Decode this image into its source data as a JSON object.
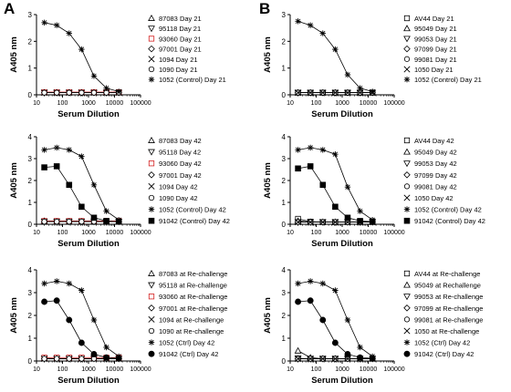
{
  "panel_letters": [
    "A",
    "B"
  ],
  "chart_data": [
    {
      "type": "line",
      "panel": "A",
      "xlabel": "Serum Dilution",
      "ylabel": "A405 nm",
      "xscale": "log",
      "xlim": [
        10,
        100000
      ],
      "ylim": [
        0,
        3
      ],
      "xticks": [
        "10",
        "100",
        "1000",
        "10000",
        "100000"
      ],
      "yticks": [
        "0",
        "1",
        "2",
        "3"
      ],
      "x": [
        20,
        60,
        180,
        540,
        1620,
        4860,
        14580
      ],
      "legend_position": "right",
      "series": [
        {
          "name": "87083 Day 21",
          "marker": "tri-up",
          "color": "#000000",
          "values": [
            0.08,
            0.08,
            0.08,
            0.08,
            0.08,
            0.08,
            0.08
          ]
        },
        {
          "name": "95118 Day 21",
          "marker": "tri-down",
          "color": "#000000",
          "values": [
            0.08,
            0.08,
            0.08,
            0.08,
            0.08,
            0.08,
            0.08
          ]
        },
        {
          "name": "93060 Day 21",
          "marker": "square",
          "color": "#d42020",
          "values": [
            0.1,
            0.1,
            0.1,
            0.1,
            0.1,
            0.1,
            0.1
          ]
        },
        {
          "name": "97001 Day 21",
          "marker": "diamond",
          "color": "#000000",
          "values": [
            0.08,
            0.08,
            0.08,
            0.08,
            0.08,
            0.08,
            0.08
          ]
        },
        {
          "name": "1094 Day 21",
          "marker": "x",
          "color": "#000000",
          "values": [
            0.08,
            0.08,
            0.08,
            0.08,
            0.08,
            0.08,
            0.08
          ]
        },
        {
          "name": "1090 Day 21",
          "marker": "circle",
          "color": "#000000",
          "values": [
            0.08,
            0.08,
            0.08,
            0.08,
            0.08,
            0.08,
            0.08
          ]
        },
        {
          "name": "1052 (Control) Day 21",
          "marker": "star",
          "color": "#000000",
          "values": [
            2.7,
            2.6,
            2.3,
            1.7,
            0.7,
            0.25,
            0.12
          ]
        }
      ]
    },
    {
      "type": "line",
      "panel": "B",
      "xlabel": "Serum Dilution",
      "ylabel": "A405 nm",
      "xscale": "log",
      "xlim": [
        10,
        100000
      ],
      "ylim": [
        0,
        3
      ],
      "xticks": [
        "10",
        "100",
        "1000",
        "10000",
        "100000"
      ],
      "yticks": [
        "0",
        "1",
        "2",
        "3"
      ],
      "x": [
        20,
        60,
        180,
        540,
        1620,
        4860,
        14580
      ],
      "legend_position": "right",
      "series": [
        {
          "name": "AV44 Day 21",
          "marker": "square",
          "color": "#000000",
          "values": [
            0.08,
            0.08,
            0.08,
            0.08,
            0.08,
            0.08,
            0.08
          ]
        },
        {
          "name": "95049 Day 21",
          "marker": "tri-up",
          "color": "#000000",
          "values": [
            0.08,
            0.08,
            0.08,
            0.08,
            0.08,
            0.08,
            0.08
          ]
        },
        {
          "name": "99053 Day 21",
          "marker": "tri-down",
          "color": "#000000",
          "values": [
            0.08,
            0.08,
            0.08,
            0.08,
            0.08,
            0.08,
            0.08
          ]
        },
        {
          "name": "97099 Day 21",
          "marker": "diamond",
          "color": "#000000",
          "values": [
            0.08,
            0.08,
            0.08,
            0.08,
            0.08,
            0.08,
            0.08
          ]
        },
        {
          "name": "99081 Day 21",
          "marker": "circle",
          "color": "#000000",
          "values": [
            0.08,
            0.08,
            0.08,
            0.08,
            0.08,
            0.08,
            0.08
          ]
        },
        {
          "name": "1050 Day 21",
          "marker": "x",
          "color": "#000000",
          "values": [
            0.08,
            0.08,
            0.08,
            0.08,
            0.08,
            0.08,
            0.08
          ]
        },
        {
          "name": "1052 (Control) Day 21",
          "marker": "star",
          "color": "#000000",
          "values": [
            2.75,
            2.6,
            2.3,
            1.7,
            0.75,
            0.25,
            0.12
          ]
        }
      ]
    },
    {
      "type": "line",
      "panel": "A",
      "xlabel": "Serum Dilution",
      "ylabel": "A405 nm",
      "xscale": "log",
      "xlim": [
        10,
        100000
      ],
      "ylim": [
        0,
        4
      ],
      "xticks": [
        "10",
        "100",
        "1000",
        "10000",
        "100000"
      ],
      "yticks": [
        "0",
        "1",
        "2",
        "3",
        "4"
      ],
      "x": [
        20,
        60,
        180,
        540,
        1620,
        4860,
        14580
      ],
      "legend_position": "right",
      "series": [
        {
          "name": "87083 Day 42",
          "marker": "tri-up",
          "color": "#000000",
          "values": [
            0.15,
            0.12,
            0.12,
            0.12,
            0.12,
            0.12,
            0.12
          ]
        },
        {
          "name": "95118 Day 42",
          "marker": "tri-down",
          "color": "#000000",
          "values": [
            0.12,
            0.12,
            0.12,
            0.12,
            0.12,
            0.12,
            0.12
          ]
        },
        {
          "name": "93060 Day 42",
          "marker": "square",
          "color": "#d42020",
          "values": [
            0.15,
            0.15,
            0.15,
            0.15,
            0.15,
            0.15,
            0.15
          ]
        },
        {
          "name": "97001 Day 42",
          "marker": "diamond",
          "color": "#000000",
          "values": [
            0.12,
            0.12,
            0.12,
            0.12,
            0.12,
            0.12,
            0.12
          ]
        },
        {
          "name": "1094 Day 42",
          "marker": "x",
          "color": "#000000",
          "values": [
            0.12,
            0.12,
            0.12,
            0.12,
            0.12,
            0.12,
            0.12
          ]
        },
        {
          "name": "1090 Day 42",
          "marker": "circle",
          "color": "#000000",
          "values": [
            0.12,
            0.12,
            0.12,
            0.12,
            0.12,
            0.12,
            0.12
          ]
        },
        {
          "name": "1052 (Control) Day 42",
          "marker": "star",
          "color": "#000000",
          "values": [
            3.4,
            3.5,
            3.4,
            3.1,
            1.8,
            0.6,
            0.2
          ]
        },
        {
          "name": "91042 (Control) Day 42",
          "marker": "filled-square",
          "color": "#000000",
          "values": [
            2.6,
            2.65,
            1.8,
            0.8,
            0.3,
            0.15,
            0.12
          ]
        }
      ]
    },
    {
      "type": "line",
      "panel": "B",
      "xlabel": "Serum Dilution",
      "ylabel": "A405 nm",
      "xscale": "log",
      "xlim": [
        10,
        100000
      ],
      "ylim": [
        0,
        4
      ],
      "xticks": [
        "10",
        "100",
        "1000",
        "10000",
        "100000"
      ],
      "yticks": [
        "0",
        "1",
        "2",
        "3",
        "4"
      ],
      "x": [
        20,
        60,
        180,
        540,
        1620,
        4860,
        14580
      ],
      "legend_position": "right",
      "series": [
        {
          "name": "AV44 Day 42",
          "marker": "square",
          "color": "#000000",
          "values": [
            0.25,
            0.12,
            0.1,
            0.1,
            0.1,
            0.1,
            0.1
          ]
        },
        {
          "name": "95049 Day 42",
          "marker": "tri-up",
          "color": "#000000",
          "values": [
            0.15,
            0.1,
            0.1,
            0.1,
            0.1,
            0.1,
            0.1
          ]
        },
        {
          "name": "99053 Day 42",
          "marker": "tri-down",
          "color": "#000000",
          "values": [
            0.1,
            0.1,
            0.1,
            0.1,
            0.1,
            0.1,
            0.1
          ]
        },
        {
          "name": "97099 Day 42",
          "marker": "diamond",
          "color": "#000000",
          "values": [
            0.1,
            0.1,
            0.1,
            0.1,
            0.1,
            0.1,
            0.1
          ]
        },
        {
          "name": "99081 Day 42",
          "marker": "circle",
          "color": "#000000",
          "values": [
            0.1,
            0.1,
            0.1,
            0.1,
            0.1,
            0.1,
            0.1
          ]
        },
        {
          "name": "1050 Day 42",
          "marker": "x",
          "color": "#000000",
          "values": [
            0.1,
            0.1,
            0.1,
            0.1,
            0.1,
            0.1,
            0.1
          ]
        },
        {
          "name": "1052 (Control) Day 42",
          "marker": "star",
          "color": "#000000",
          "values": [
            3.4,
            3.5,
            3.4,
            3.2,
            1.7,
            0.6,
            0.2
          ]
        },
        {
          "name": "91042 (Control) Day 42",
          "marker": "filled-square",
          "color": "#000000",
          "values": [
            2.55,
            2.65,
            1.8,
            0.8,
            0.3,
            0.15,
            0.12
          ]
        }
      ]
    },
    {
      "type": "line",
      "panel": "A",
      "xlabel": "Serum Dilution",
      "ylabel": "A405 nm",
      "xscale": "log",
      "xlim": [
        10,
        100000
      ],
      "ylim": [
        0,
        4
      ],
      "xticks": [
        "10",
        "100",
        "1000",
        "10000",
        "100000"
      ],
      "yticks": [
        "0",
        "1",
        "2",
        "3",
        "4"
      ],
      "x": [
        20,
        60,
        180,
        540,
        1620,
        4860,
        14580
      ],
      "legend_position": "right",
      "series": [
        {
          "name": "87083 at Re-challenge",
          "marker": "tri-up",
          "color": "#000000",
          "values": [
            0.12,
            0.1,
            0.1,
            0.1,
            0.1,
            0.1,
            0.1
          ]
        },
        {
          "name": "95118 at Re-challenge",
          "marker": "tri-down",
          "color": "#000000",
          "values": [
            0.1,
            0.1,
            0.1,
            0.1,
            0.1,
            0.1,
            0.1
          ]
        },
        {
          "name": "93060 at Re-challenge",
          "marker": "square",
          "color": "#d42020",
          "values": [
            0.15,
            0.15,
            0.15,
            0.15,
            0.15,
            0.15,
            0.15
          ]
        },
        {
          "name": "97001 at Re-challenge",
          "marker": "diamond",
          "color": "#000000",
          "values": [
            0.1,
            0.1,
            0.1,
            0.1,
            0.1,
            0.1,
            0.1
          ]
        },
        {
          "name": "1094 at Re-challenge",
          "marker": "x",
          "color": "#000000",
          "values": [
            0.1,
            0.1,
            0.1,
            0.1,
            0.1,
            0.1,
            0.1
          ]
        },
        {
          "name": "1090 at Re-challenge",
          "marker": "circle",
          "color": "#000000",
          "values": [
            0.1,
            0.1,
            0.1,
            0.1,
            0.1,
            0.1,
            0.1
          ]
        },
        {
          "name": "1052 (Ctrl) Day 42",
          "marker": "star",
          "color": "#000000",
          "values": [
            3.4,
            3.5,
            3.4,
            3.1,
            1.8,
            0.6,
            0.2
          ]
        },
        {
          "name": "91042 (Ctrl) Day 42",
          "marker": "filled-circle",
          "color": "#000000",
          "values": [
            2.6,
            2.65,
            1.8,
            0.8,
            0.3,
            0.15,
            0.12
          ]
        }
      ]
    },
    {
      "type": "line",
      "panel": "B",
      "xlabel": "Serum Dilution",
      "ylabel": "A405 nm",
      "xscale": "log",
      "xlim": [
        10,
        100000
      ],
      "ylim": [
        0,
        4
      ],
      "xticks": [
        "10",
        "100",
        "1000",
        "10000",
        "100000"
      ],
      "yticks": [
        "0",
        "1",
        "2",
        "3",
        "4"
      ],
      "x": [
        20,
        60,
        180,
        540,
        1620,
        4860,
        14580
      ],
      "legend_position": "right",
      "series": [
        {
          "name": "AV44 at Re-challenge",
          "marker": "square",
          "color": "#000000",
          "values": [
            0.1,
            0.1,
            0.1,
            0.1,
            0.1,
            0.1,
            0.1
          ]
        },
        {
          "name": "95049 at Rechallenge",
          "marker": "tri-up",
          "color": "#000000",
          "values": [
            0.45,
            0.15,
            0.1,
            0.1,
            0.1,
            0.1,
            0.1
          ]
        },
        {
          "name": "99053 at Re-challenge",
          "marker": "tri-down",
          "color": "#000000",
          "values": [
            0.12,
            0.1,
            0.1,
            0.1,
            0.1,
            0.1,
            0.1
          ]
        },
        {
          "name": "97099 at Re-challenge",
          "marker": "diamond",
          "color": "#000000",
          "values": [
            0.1,
            0.1,
            0.1,
            0.1,
            0.1,
            0.1,
            0.1
          ]
        },
        {
          "name": "99081 at Re-challenge",
          "marker": "circle",
          "color": "#000000",
          "values": [
            0.1,
            0.1,
            0.1,
            0.1,
            0.1,
            0.1,
            0.1
          ]
        },
        {
          "name": "1050 at Re-challenge",
          "marker": "x",
          "color": "#000000",
          "values": [
            0.1,
            0.1,
            0.1,
            0.1,
            0.1,
            0.1,
            0.1
          ]
        },
        {
          "name": "1052 (Ctrl) Day 42",
          "marker": "star",
          "color": "#000000",
          "values": [
            3.4,
            3.5,
            3.4,
            3.1,
            1.8,
            0.6,
            0.2
          ]
        },
        {
          "name": "91042 (Ctrl) Day 42",
          "marker": "filled-circle",
          "color": "#000000",
          "values": [
            2.6,
            2.65,
            1.8,
            0.8,
            0.3,
            0.15,
            0.12
          ]
        }
      ]
    }
  ]
}
